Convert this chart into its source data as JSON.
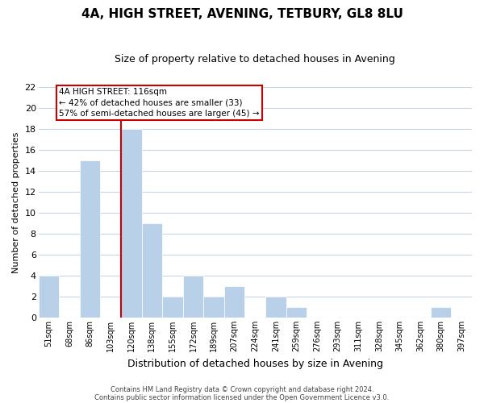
{
  "title": "4A, HIGH STREET, AVENING, TETBURY, GL8 8LU",
  "subtitle": "Size of property relative to detached houses in Avening",
  "xlabel": "Distribution of detached houses by size in Avening",
  "ylabel": "Number of detached properties",
  "bar_labels": [
    "51sqm",
    "68sqm",
    "86sqm",
    "103sqm",
    "120sqm",
    "138sqm",
    "155sqm",
    "172sqm",
    "189sqm",
    "207sqm",
    "224sqm",
    "241sqm",
    "259sqm",
    "276sqm",
    "293sqm",
    "311sqm",
    "328sqm",
    "345sqm",
    "362sqm",
    "380sqm",
    "397sqm"
  ],
  "bar_values": [
    4,
    0,
    15,
    0,
    18,
    9,
    2,
    4,
    2,
    3,
    0,
    2,
    1,
    0,
    0,
    0,
    0,
    0,
    0,
    1,
    0
  ],
  "bar_color": "#b8d0e8",
  "bar_edge_color": "#ffffff",
  "background_color": "#ffffff",
  "grid_color": "#c8d4e4",
  "vline_color": "#cc0000",
  "ylim": [
    0,
    22
  ],
  "yticks": [
    0,
    2,
    4,
    6,
    8,
    10,
    12,
    14,
    16,
    18,
    20,
    22
  ],
  "annotation_line1": "4A HIGH STREET: 116sqm",
  "annotation_line2": "← 42% of detached houses are smaller (33)",
  "annotation_line3": "57% of semi-detached houses are larger (45) →",
  "annotation_box_color": "#ffffff",
  "annotation_box_edge": "#cc0000",
  "footer_line1": "Contains HM Land Registry data © Crown copyright and database right 2024.",
  "footer_line2": "Contains public sector information licensed under the Open Government Licence v3.0."
}
